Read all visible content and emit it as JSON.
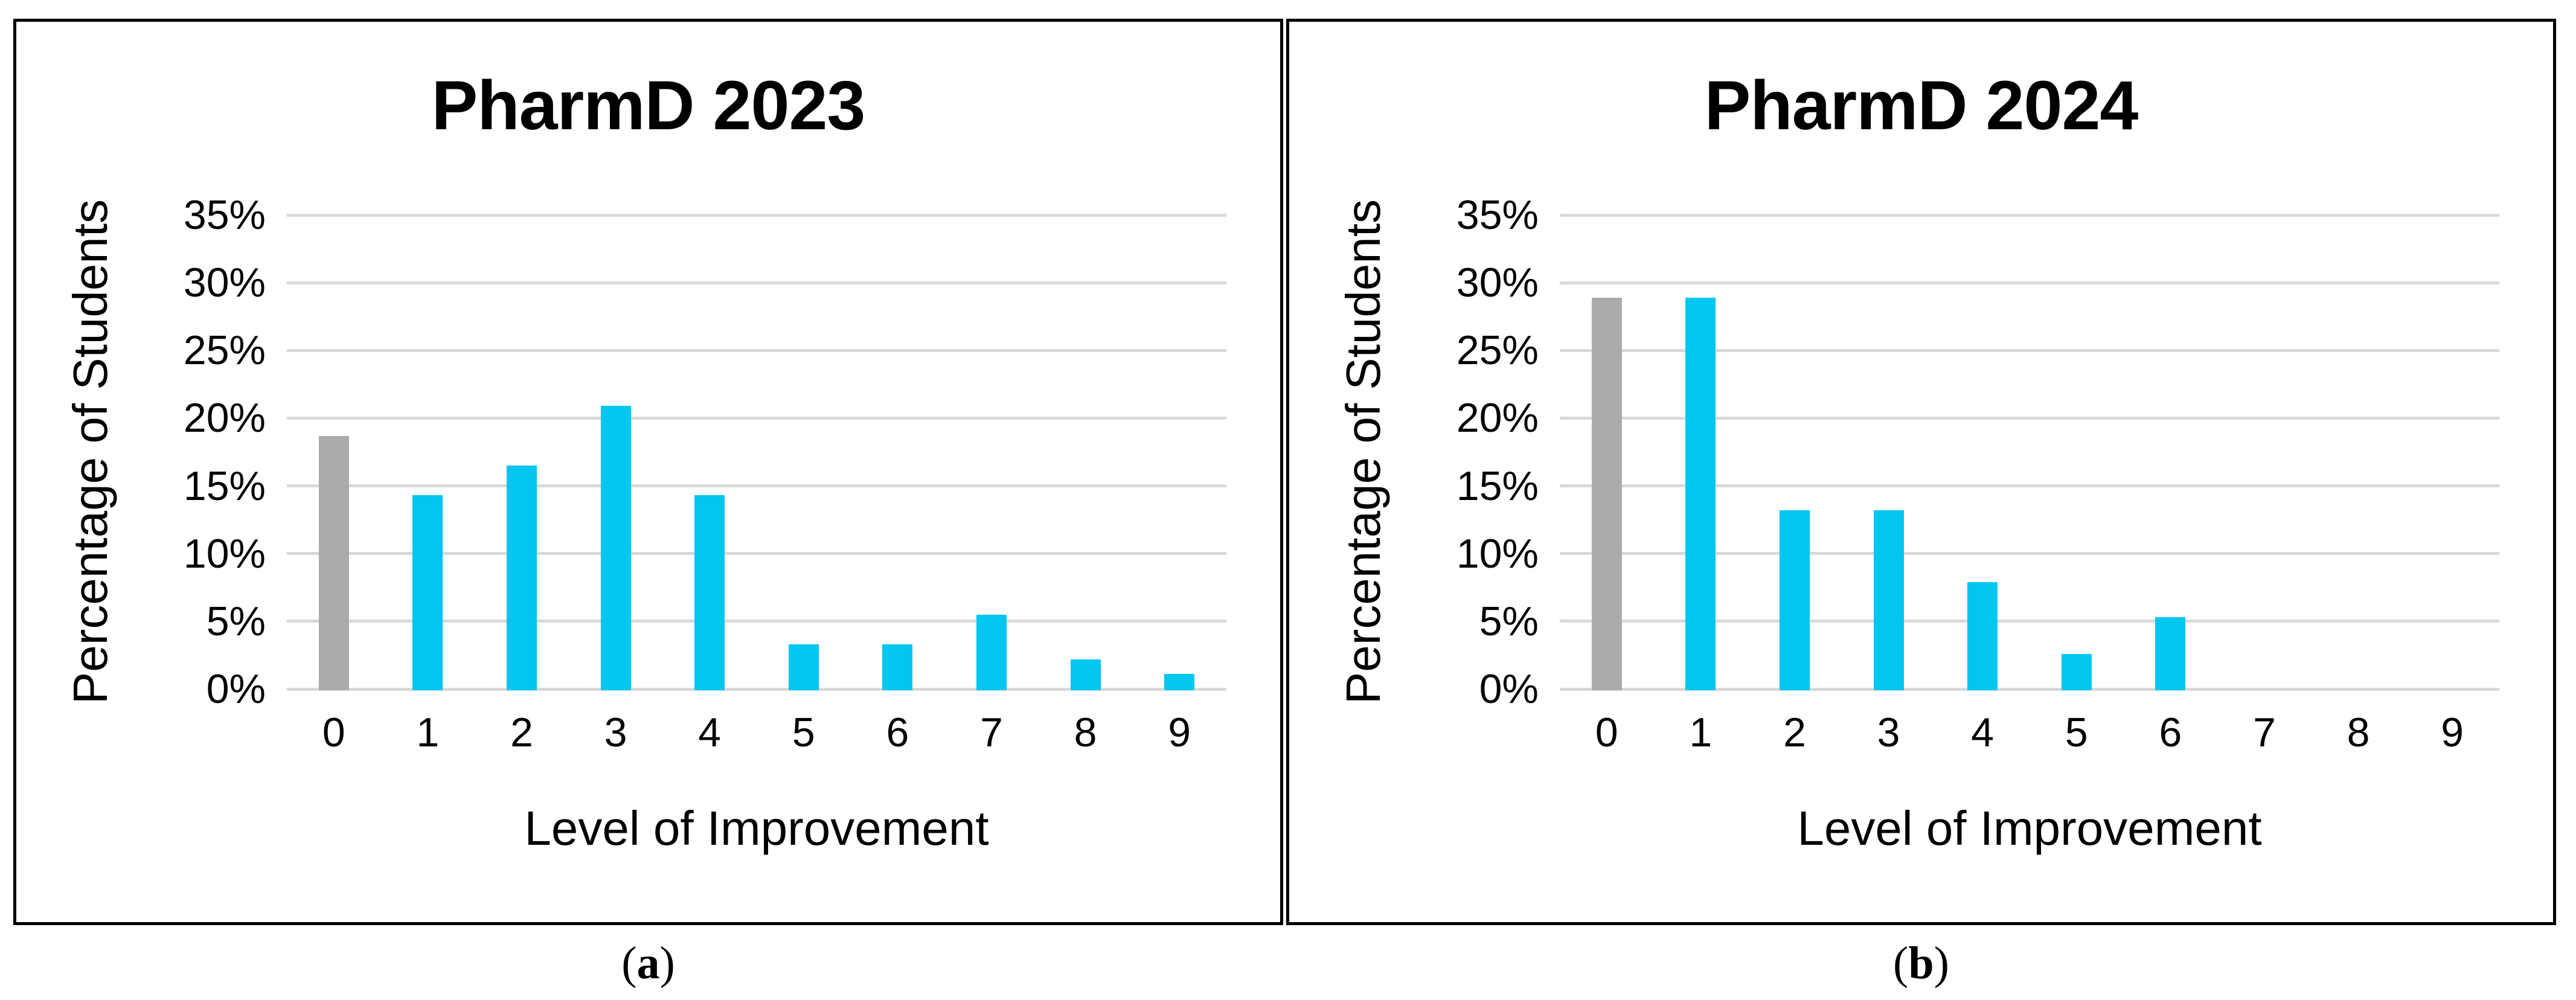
{
  "figure": {
    "panels": [
      {
        "caption_open": "(",
        "caption_letter": "a",
        "caption_close": ")"
      },
      {
        "caption_open": "(",
        "caption_letter": "b",
        "caption_close": ")"
      }
    ]
  },
  "colors": {
    "bar_default": "#00C6F0",
    "bar_zero_category": "#ABABAB",
    "gridline": "#D9D9D9",
    "panel_border": "#000000",
    "text": "#000000"
  },
  "chart_data": [
    {
      "type": "bar",
      "title": "PharmD 2023",
      "xlabel": "Level of Improvement",
      "ylabel": "Percentage of Students",
      "categories": [
        "0",
        "1",
        "2",
        "3",
        "4",
        "5",
        "6",
        "7",
        "8",
        "9"
      ],
      "values": [
        18.7,
        14.3,
        16.5,
        20.9,
        14.3,
        3.3,
        3.3,
        5.5,
        2.2,
        1.1
      ],
      "unit": "%",
      "ylim": [
        0,
        35
      ],
      "ytick_step": 5,
      "ytick_labels": [
        "0%",
        "5%",
        "10%",
        "15%",
        "20%",
        "25%",
        "30%",
        "35%"
      ],
      "grid": true,
      "legend": "none",
      "bar_color_note": "category 0 bar is gray, categories 1-9 are cyan"
    },
    {
      "type": "bar",
      "title": "PharmD 2024",
      "xlabel": "Level of Improvement",
      "ylabel": "Percentage of Students",
      "categories": [
        "0",
        "1",
        "2",
        "3",
        "4",
        "5",
        "6",
        "7",
        "8",
        "9"
      ],
      "values": [
        28.9,
        28.9,
        13.2,
        13.2,
        7.9,
        2.6,
        5.3,
        0,
        0,
        0
      ],
      "unit": "%",
      "ylim": [
        0,
        35
      ],
      "ytick_step": 5,
      "ytick_labels": [
        "0%",
        "5%",
        "10%",
        "15%",
        "20%",
        "25%",
        "30%",
        "35%"
      ],
      "grid": true,
      "legend": "none",
      "bar_color_note": "category 0 bar is gray, categories 1-9 are cyan"
    }
  ]
}
